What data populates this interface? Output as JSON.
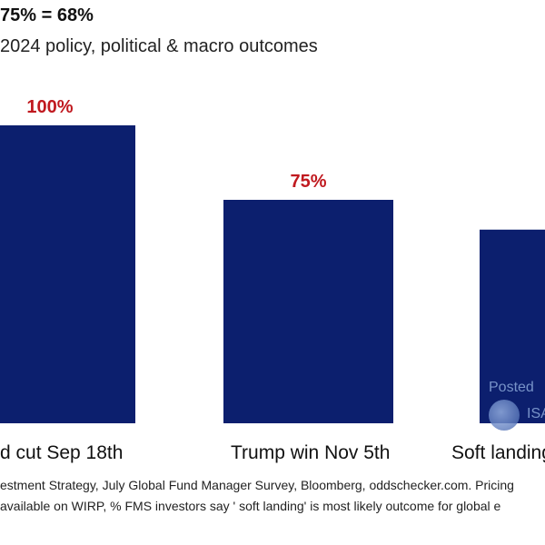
{
  "chart_data": {
    "type": "bar",
    "title": "75% = 68%",
    "subtitle": "2024 policy, political & macro outcomes",
    "categories": [
      "d cut Sep 18th",
      "Trump win Nov 5th",
      "Soft landing"
    ],
    "values": [
      100,
      75,
      65
    ],
    "value_labels": [
      "100%",
      "75%",
      ""
    ],
    "ylim": [
      0,
      100
    ],
    "bar_color": "#0c1f6e",
    "label_color": "#c0191f",
    "grid": false
  },
  "footnotes": [
    "estment Strategy, July Global Fund Manager Survey, Bloomberg, oddschecker.com. Pricing",
    "available on WIRP, % FMS investors say ' soft landing' is most likely outcome for global e"
  ],
  "watermark": {
    "line1": "Posted",
    "line2": "ISA"
  }
}
